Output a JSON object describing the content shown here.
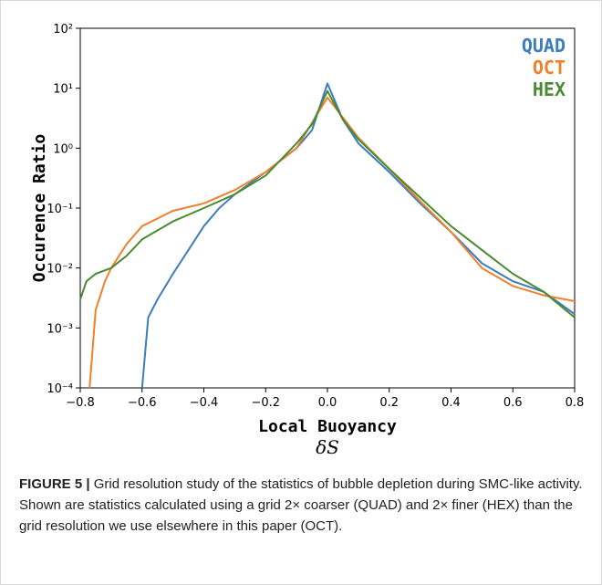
{
  "chart_data": {
    "type": "line",
    "x_label": "Local Buoyancy",
    "x_symbol": "δS",
    "y_label": "Occurence Ratio",
    "xlim": [
      -0.8,
      0.8
    ],
    "xticks": [
      {
        "value": -0.8,
        "label": "−0.8"
      },
      {
        "value": -0.6,
        "label": "−0.6"
      },
      {
        "value": -0.4,
        "label": "−0.4"
      },
      {
        "value": -0.2,
        "label": "−0.2"
      },
      {
        "value": 0,
        "label": "0.0"
      },
      0.2,
      0.4,
      0.6,
      0.8
    ],
    "ylim": [
      0.0001,
      100
    ],
    "y_scale": "log",
    "yticks": [
      {
        "value": 0.0001,
        "label": "10⁻⁴"
      },
      {
        "value": 0.001,
        "label": "10⁻³"
      },
      {
        "value": 0.01,
        "label": "10⁻²"
      },
      {
        "value": 0.1,
        "label": "10⁻¹"
      },
      {
        "value": 1,
        "label": "10⁰"
      },
      {
        "value": 10,
        "label": "10¹"
      },
      {
        "value": 100,
        "label": "10²"
      }
    ],
    "legend": "upper right",
    "series": [
      {
        "name": "QUAD",
        "color": "#3b7dbd",
        "x": [
          -0.6,
          -0.58,
          -0.55,
          -0.5,
          -0.45,
          -0.4,
          -0.35,
          -0.3,
          -0.2,
          -0.1,
          -0.05,
          0,
          0.05,
          0.1,
          0.2,
          0.3,
          0.4,
          0.5,
          0.6,
          0.7,
          0.8
        ],
        "values": [
          0.0001,
          0.0015,
          0.003,
          0.008,
          0.02,
          0.05,
          0.1,
          0.17,
          0.4,
          1.0,
          2.0,
          12,
          3,
          1.2,
          0.4,
          0.12,
          0.04,
          0.012,
          0.006,
          0.004,
          0.0017
        ]
      },
      {
        "name": "OCT",
        "color": "#f0802e",
        "x": [
          -0.77,
          -0.75,
          -0.72,
          -0.7,
          -0.65,
          -0.6,
          -0.5,
          -0.4,
          -0.3,
          -0.2,
          -0.1,
          0,
          0.1,
          0.2,
          0.3,
          0.4,
          0.5,
          0.6,
          0.7,
          0.8
        ],
        "values": [
          0.0001,
          0.002,
          0.006,
          0.01,
          0.025,
          0.05,
          0.09,
          0.12,
          0.2,
          0.4,
          1.0,
          7,
          1.5,
          0.45,
          0.13,
          0.04,
          0.01,
          0.005,
          0.0035,
          0.0028
        ]
      },
      {
        "name": "HEX",
        "color": "#4a8a30",
        "x": [
          -0.8,
          -0.78,
          -0.75,
          -0.7,
          -0.65,
          -0.6,
          -0.5,
          -0.4,
          -0.3,
          -0.2,
          -0.1,
          -0.05,
          0,
          0.05,
          0.1,
          0.2,
          0.3,
          0.4,
          0.5,
          0.6,
          0.7,
          0.8
        ],
        "values": [
          0.003,
          0.006,
          0.008,
          0.01,
          0.016,
          0.03,
          0.06,
          0.1,
          0.17,
          0.35,
          1.2,
          2.5,
          9,
          3,
          1.4,
          0.45,
          0.15,
          0.05,
          0.02,
          0.008,
          0.004,
          0.0015
        ]
      }
    ]
  },
  "caption": {
    "label": "FIGURE 5 |",
    "text": "Grid resolution study of the statistics of bubble depletion during SMC-like activity. Shown are statistics calculated using a grid 2× coarser (QUAD) and 2× finer (HEX) than the grid resolution we use elsewhere in this paper (OCT)."
  }
}
